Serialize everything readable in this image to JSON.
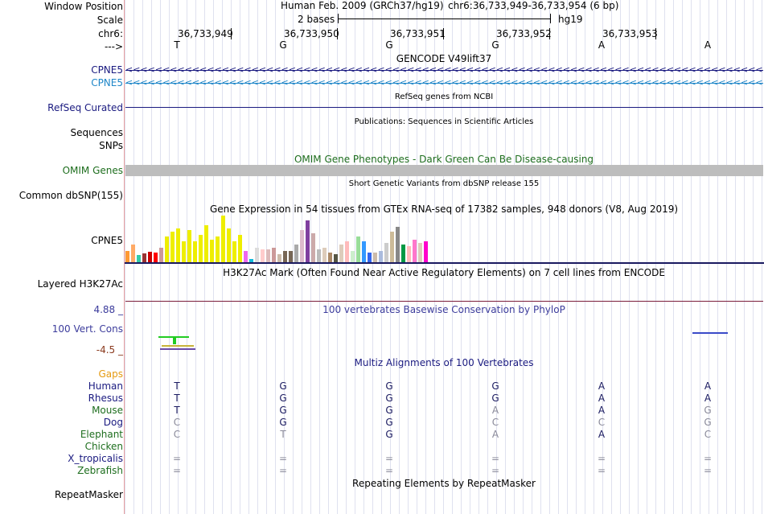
{
  "labels": {
    "window_position": "Window Position",
    "scale": "Scale",
    "chr": "chr6:",
    "strand": "--->",
    "cpne5_1": "CPNE5",
    "cpne5_2": "CPNE5",
    "refseq": "RefSeq Curated",
    "sequences": "Sequences",
    "snps": "SNPs",
    "omim": "OMIM Genes",
    "dbsnp": "Common dbSNP(155)",
    "gtex_gene": "CPNE5",
    "h3k27ac": "Layered H3K27Ac",
    "cons_max": "4.88 _",
    "cons": "100 Vert. Cons",
    "cons_min": "-4.5 _",
    "gaps": "Gaps",
    "species": [
      "Human",
      "Rhesus",
      "Mouse",
      "Dog",
      "Elephant",
      "Chicken",
      "X_tropicalis",
      "Zebrafish"
    ],
    "repeatmasker": "RepeatMasker"
  },
  "header": {
    "assembly": "Human Feb. 2009 (GRCh37/hg19)",
    "position": "chr6:36,733,949-36,733,954 (6 bp)",
    "scale_text": "2 bases",
    "db": "hg19",
    "coords": [
      "36,733,949",
      "36,733,950",
      "36,733,951",
      "36,733,952",
      "36,733,953"
    ],
    "bases": [
      "T",
      "G",
      "G",
      "G",
      "A",
      "A"
    ]
  },
  "tracks": {
    "gencode_title": "GENCODE V49lift37",
    "refseq_title": "RefSeq genes from NCBI",
    "publications_title": "Publications: Sequences in Scientific Articles",
    "omim_title": "OMIM Gene Phenotypes - Dark Green Can Be Disease-causing",
    "dbsnp_title": "Short Genetic Variants from dbSNP release 155",
    "gtex_title": "Gene Expression in 54 tissues from GTEx RNA-seq of 17382 samples, 948 donors (V8, Aug 2019)",
    "h3k27ac_title": "H3K27Ac Mark (Often Found Near Active Regulatory Elements) on 7 cell lines from ENCODE",
    "phylop_title": "100 vertebrates Basewise Conservation by PhyloP",
    "multiz_title": "Multiz Alignments of 100 Vertebrates",
    "repeat_title": "Repeating Elements by RepeatMasker"
  },
  "alignment": {
    "Human": [
      "T",
      "G",
      "G",
      "G",
      "A",
      "A"
    ],
    "Rhesus": [
      "T",
      "G",
      "G",
      "G",
      "A",
      "A"
    ],
    "Mouse": [
      "T",
      "G",
      "G",
      "A",
      "A",
      "G"
    ],
    "Dog": [
      "C",
      "G",
      "G",
      "C",
      "C",
      "G"
    ],
    "Elephant": [
      "C",
      "T",
      "G",
      "A",
      "A",
      "C"
    ],
    "Chicken": [
      "",
      "",
      "",
      "",
      "",
      ""
    ],
    "X_tropicalis": [
      "=",
      "=",
      "=",
      "=",
      "=",
      "="
    ],
    "Zebrafish": [
      "=",
      "=",
      "=",
      "=",
      "=",
      "="
    ]
  },
  "alignment_gray": {
    "Human": [
      0,
      0,
      0,
      0,
      0,
      0
    ],
    "Rhesus": [
      0,
      0,
      0,
      0,
      0,
      0
    ],
    "Mouse": [
      0,
      0,
      0,
      1,
      0,
      1
    ],
    "Dog": [
      1,
      0,
      0,
      1,
      1,
      1
    ],
    "Elephant": [
      1,
      1,
      0,
      1,
      0,
      1
    ],
    "Chicken": [
      0,
      0,
      0,
      0,
      0,
      0
    ],
    "X_tropicalis": [
      1,
      1,
      1,
      1,
      1,
      1
    ],
    "Zebrafish": [
      1,
      1,
      1,
      1,
      1,
      1
    ]
  },
  "gtex_bars": {
    "values": [
      14,
      22,
      9,
      11,
      13,
      12,
      18,
      32,
      38,
      42,
      26,
      40,
      26,
      34,
      46,
      28,
      32,
      58,
      42,
      26,
      34,
      14,
      4,
      18,
      16,
      16,
      18,
      10,
      14,
      14,
      22,
      40,
      52,
      36,
      16,
      18,
      12,
      10,
      22,
      26,
      14,
      32,
      26,
      12,
      12,
      14,
      24,
      38,
      44,
      22,
      20,
      28,
      24,
      26
    ],
    "colors": [
      "#ff9933",
      "#ffaa66",
      "#33ccaa",
      "#993333",
      "#cc0000",
      "#ff0000",
      "#cc9999",
      "#eeee00",
      "#eeee00",
      "#eeee00",
      "#eeee00",
      "#eeee00",
      "#eeee00",
      "#eeee00",
      "#eeee00",
      "#eeee00",
      "#eeee00",
      "#eeee00",
      "#eeee00",
      "#eeee00",
      "#eeee00",
      "#ee66ee",
      "#11bbdd",
      "#dddddd",
      "#ffcccc",
      "#ddbbbb",
      "#cc9999",
      "#ccbbaa",
      "#776655",
      "#776655",
      "#aaaaaa",
      "#ddbbcc",
      "#7f3fa0",
      "#ccaaaa",
      "#bbbbbb",
      "#ddccbb",
      "#aa8866",
      "#555544",
      "#ddccbb",
      "#ffbbbb",
      "#cceecc",
      "#99dd99",
      "#3399ff",
      "#3366ee",
      "#ccbbaa",
      "#aabbdd",
      "#cccccc",
      "#ccbb99",
      "#888888",
      "#009944",
      "#ffbbbb",
      "#ff77cc",
      "#ddccbb",
      "#ff00cc"
    ]
  }
}
